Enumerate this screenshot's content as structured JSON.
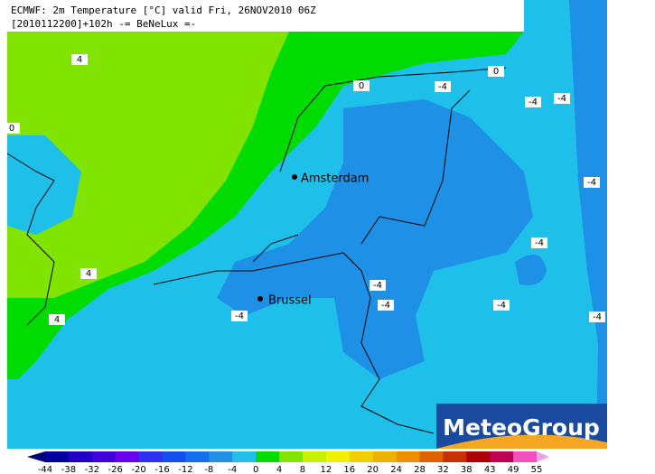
{
  "header": {
    "line1": "ECMWF: 2m Temperature [°C] valid Fri, 26NOV2010 06Z",
    "line2": "[2010112200]+102h -= BeNeLux =-"
  },
  "cities": [
    {
      "label": "Amsterdam"
    },
    {
      "label": "Brussel"
    }
  ],
  "contour_labels": [
    "4",
    "0",
    "-4",
    "0",
    "-4",
    "-4",
    "0",
    "-4",
    "-4",
    "4",
    "-4",
    "-4",
    "-4",
    "-4",
    "4",
    "-4"
  ],
  "logo": "MeteoGroup",
  "colorbar": {
    "labels": [
      "-44",
      "-38",
      "-32",
      "-26",
      "-20",
      "-16",
      "-12",
      "-8",
      "-4",
      "0",
      "4",
      "8",
      "12",
      "16",
      "20",
      "24",
      "28",
      "32",
      "38",
      "43",
      "49",
      "55"
    ]
  }
}
